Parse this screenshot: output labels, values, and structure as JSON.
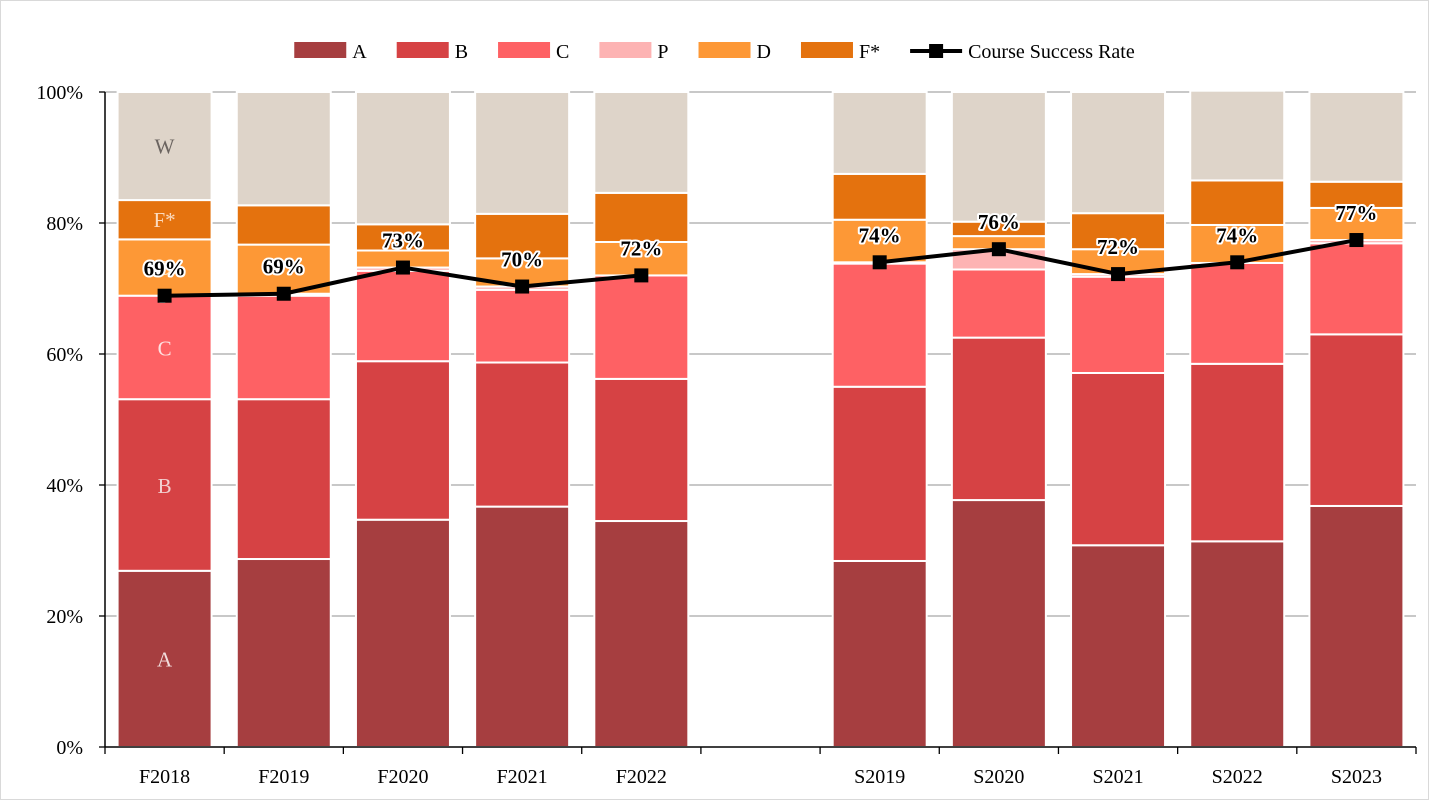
{
  "chart_data": {
    "type": "bar",
    "stacked": true,
    "percent_stacked": true,
    "categories": [
      "F2018",
      "F2019",
      "F2020",
      "F2021",
      "F2022",
      "",
      "S2019",
      "S2020",
      "S2021",
      "S2022",
      "S2023"
    ],
    "series": [
      {
        "name": "A",
        "color": "#a63e40",
        "values": [
          26.9,
          28.7,
          34.7,
          36.7,
          34.5,
          null,
          28.4,
          37.7,
          30.8,
          31.4,
          36.8
        ]
      },
      {
        "name": "B",
        "color": "#d64244",
        "values": [
          26.2,
          24.4,
          24.2,
          22.0,
          21.7,
          null,
          26.6,
          24.8,
          26.3,
          27.1,
          26.2
        ]
      },
      {
        "name": "C",
        "color": "#fe6164",
        "values": [
          15.8,
          15.8,
          13.8,
          11.1,
          15.8,
          null,
          18.8,
          10.4,
          14.7,
          15.4,
          13.9
        ]
      },
      {
        "name": "P",
        "color": "#fdb3b3",
        "values": [
          0.0,
          0.3,
          0.5,
          0.5,
          0.0,
          null,
          0.2,
          3.1,
          0.4,
          0.0,
          0.5
        ]
      },
      {
        "name": "D",
        "color": "#fd9836",
        "values": [
          8.6,
          7.5,
          2.6,
          4.3,
          5.1,
          null,
          6.5,
          2.0,
          3.8,
          5.8,
          4.9
        ]
      },
      {
        "name": "F*",
        "color": "#e4720e",
        "values": [
          6.0,
          6.0,
          4.0,
          6.8,
          7.5,
          null,
          7.0,
          2.2,
          5.5,
          6.8,
          4.0
        ]
      },
      {
        "name": "W",
        "color": "#ded4c9",
        "legend": false,
        "values": [
          16.5,
          17.3,
          20.2,
          18.6,
          15.4,
          null,
          12.5,
          19.8,
          18.5,
          13.7,
          13.7
        ]
      }
    ],
    "line_series": {
      "name": "Course Success Rate",
      "color": "#000000",
      "values": [
        68.9,
        69.2,
        73.2,
        70.3,
        72.0,
        null,
        74.0,
        76.0,
        72.2,
        74.0,
        77.4
      ],
      "labels": [
        "69%",
        "69%",
        "73%",
        "70%",
        "72%",
        "",
        "74%",
        "76%",
        "72%",
        "74%",
        "77%"
      ]
    },
    "segment_labels": [
      {
        "text": "A",
        "category": 0,
        "value": 13.5,
        "color": "#f2dcdc"
      },
      {
        "text": "B",
        "category": 0,
        "value": 40.0,
        "color": "#f2d0d0"
      },
      {
        "text": "C",
        "category": 0,
        "value": 61.0,
        "color": "#fde0e0"
      },
      {
        "text": "P",
        "category": 0,
        "value": 69.0,
        "color": "#ffffff"
      },
      {
        "text": "D",
        "category": 0,
        "value": 73.3,
        "color": "#fde6c8"
      },
      {
        "text": "F*",
        "category": 0,
        "value": 80.6,
        "color": "#fbdcc0"
      },
      {
        "text": "W",
        "category": 0,
        "value": 91.8,
        "color": "#6b6460"
      }
    ],
    "y_axis": {
      "min": 0,
      "max": 100,
      "step": 20,
      "tick_labels": [
        "0%",
        "20%",
        "40%",
        "60%",
        "80%",
        "100%"
      ]
    },
    "gridlines": true,
    "legend_position": "top",
    "title": "",
    "xlabel": "",
    "ylabel": ""
  }
}
